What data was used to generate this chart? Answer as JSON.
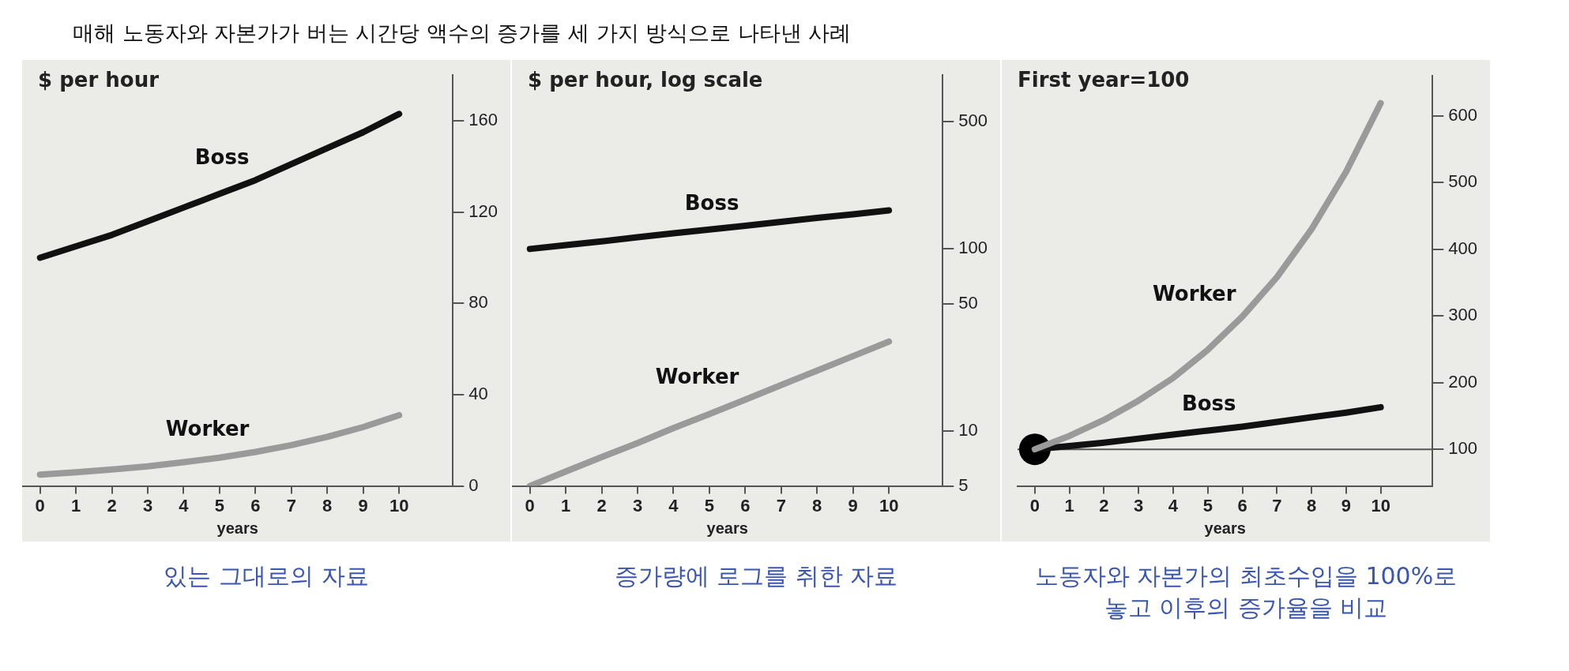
{
  "chart_data": [
    {
      "type": "line",
      "title": "매해 노동자와 자본가가 버는 시간당 액수의 증가를 세 가지 방식으로 나타낸 사례",
      "ylabel": "$ per hour",
      "xlabel": "years",
      "x": [
        0,
        1,
        2,
        3,
        4,
        5,
        6,
        7,
        8,
        9,
        10
      ],
      "series": [
        {
          "name": "Boss",
          "color": "#111111",
          "values": [
            100,
            105,
            110,
            116,
            122,
            128,
            134,
            141,
            148,
            155,
            163
          ]
        },
        {
          "name": "Worker",
          "color": "#9a9a9a",
          "values": [
            5,
            6,
            7.2,
            8.6,
            10.4,
            12.4,
            14.9,
            17.9,
            21.5,
            25.8,
            31
          ]
        }
      ],
      "xlim": [
        -0.5,
        11.5
      ],
      "xticks": [
        0,
        1,
        2,
        3,
        4,
        5,
        6,
        7,
        8,
        9,
        10
      ],
      "ylim": [
        0,
        180
      ],
      "yticks": [
        0,
        40,
        80,
        120,
        160
      ],
      "marker": "none",
      "annotations": [
        "있는 그대로의 자료"
      ]
    },
    {
      "type": "line",
      "ylabel": "$ per hour, log scale",
      "xlabel": "years",
      "log": true,
      "x": [
        0,
        1,
        2,
        3,
        4,
        5,
        6,
        7,
        8,
        9,
        10
      ],
      "series": [
        {
          "name": "Boss",
          "color": "#111111",
          "values": [
            100,
            105,
            110,
            116,
            122,
            128,
            134,
            141,
            148,
            155,
            163
          ]
        },
        {
          "name": "Worker",
          "color": "#9a9a9a",
          "values": [
            5,
            6,
            7.2,
            8.6,
            10.4,
            12.4,
            14.9,
            17.9,
            21.5,
            25.8,
            31
          ]
        }
      ],
      "xlim": [
        -0.5,
        11.5
      ],
      "xticks": [
        0,
        1,
        2,
        3,
        4,
        5,
        6,
        7,
        8,
        9,
        10
      ],
      "ylim": [
        5,
        900
      ],
      "yticks": [
        5,
        10,
        50,
        100,
        500
      ],
      "marker": "none",
      "annotations": [
        "증가량에 로그를 취한 자료"
      ]
    },
    {
      "type": "line",
      "ylabel": "First year=100",
      "xlabel": "years",
      "x": [
        0,
        1,
        2,
        3,
        4,
        5,
        6,
        7,
        8,
        9,
        10
      ],
      "series": [
        {
          "name": "Worker",
          "color": "#9a9a9a",
          "values": [
            100,
            120,
            144,
            173,
            207,
            249,
            299,
            358,
            430,
            516,
            619
          ]
        },
        {
          "name": "Boss",
          "color": "#111111",
          "values": [
            100,
            105,
            110,
            116,
            122,
            128,
            134,
            141,
            148,
            155,
            163
          ]
        },
        {
          "type": "scatter",
          "color": "#000000",
          "marker": "circle",
          "x": [
            0
          ],
          "values": [
            100
          ]
        }
      ],
      "xlim": [
        -0.5,
        11.5
      ],
      "xticks": [
        0,
        1,
        2,
        3,
        4,
        5,
        6,
        7,
        8,
        9,
        10
      ],
      "ylim": [
        45,
        660
      ],
      "yticks": [
        100,
        200,
        300,
        400,
        500,
        600
      ],
      "ref_lines": [
        {
          "axis": "y",
          "value": 100,
          "color": "#555555"
        }
      ],
      "marker": "none",
      "annotations": [
        "노동자와 자본가의 최초수입을 100%로 놓고 이후의 증가율을 비교"
      ]
    }
  ]
}
